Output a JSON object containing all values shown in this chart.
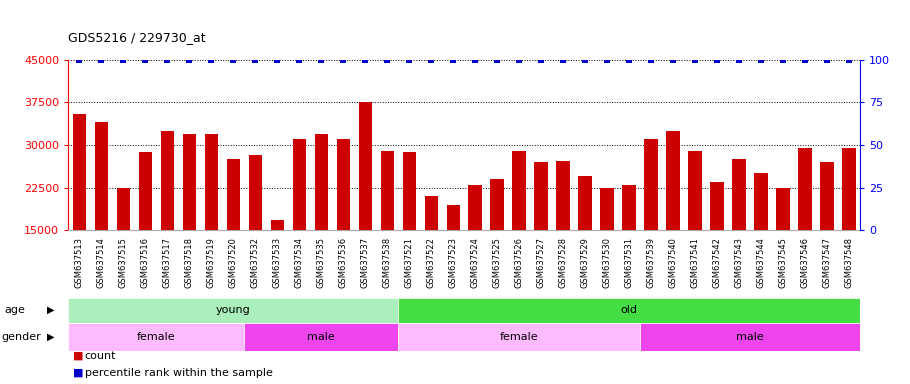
{
  "title": "GDS5216 / 229730_at",
  "samples": [
    "GSM637513",
    "GSM637514",
    "GSM637515",
    "GSM637516",
    "GSM637517",
    "GSM637518",
    "GSM637519",
    "GSM637520",
    "GSM637532",
    "GSM637533",
    "GSM637534",
    "GSM637535",
    "GSM637536",
    "GSM637537",
    "GSM637538",
    "GSM637521",
    "GSM637522",
    "GSM637523",
    "GSM637524",
    "GSM637525",
    "GSM637526",
    "GSM637527",
    "GSM637528",
    "GSM637529",
    "GSM637530",
    "GSM637531",
    "GSM637539",
    "GSM637540",
    "GSM637541",
    "GSM637542",
    "GSM637543",
    "GSM637544",
    "GSM637545",
    "GSM637546",
    "GSM637547",
    "GSM637548"
  ],
  "counts": [
    35500,
    34000,
    22500,
    28700,
    32500,
    32000,
    32000,
    27500,
    28300,
    16800,
    31000,
    32000,
    31000,
    37500,
    29000,
    28700,
    21000,
    19500,
    23000,
    24000,
    29000,
    27000,
    27200,
    24500,
    22500,
    23000,
    31000,
    32500,
    29000,
    23500,
    27500,
    25000,
    22500,
    29500,
    27000,
    29500
  ],
  "percentiles": [
    100,
    100,
    100,
    100,
    100,
    100,
    100,
    100,
    100,
    100,
    100,
    100,
    100,
    100,
    100,
    100,
    100,
    100,
    100,
    100,
    100,
    100,
    100,
    100,
    100,
    100,
    100,
    100,
    100,
    100,
    100,
    100,
    100,
    100,
    100,
    100
  ],
  "bar_color": "#cc0000",
  "percentile_color": "#0000cc",
  "ylim_left": [
    15000,
    45000
  ],
  "ylim_right": [
    0,
    100
  ],
  "yticks_left": [
    15000,
    22500,
    30000,
    37500,
    45000
  ],
  "yticks_right": [
    0,
    25,
    50,
    75,
    100
  ],
  "age_groups": [
    {
      "label": "young",
      "start": 0,
      "end": 15,
      "color": "#aaeebb"
    },
    {
      "label": "old",
      "start": 15,
      "end": 36,
      "color": "#44dd44"
    }
  ],
  "gender_groups": [
    {
      "label": "female",
      "start": 0,
      "end": 8,
      "color": "#ffbbff"
    },
    {
      "label": "male",
      "start": 8,
      "end": 15,
      "color": "#ee44ee"
    },
    {
      "label": "female",
      "start": 15,
      "end": 26,
      "color": "#ffbbff"
    },
    {
      "label": "male",
      "start": 26,
      "end": 36,
      "color": "#ee44ee"
    }
  ],
  "age_label": "age",
  "gender_label": "gender",
  "legend_count_label": "count",
  "legend_pct_label": "percentile rank within the sample",
  "plot_bg": "#ffffff",
  "fig_bg": "#ffffff"
}
